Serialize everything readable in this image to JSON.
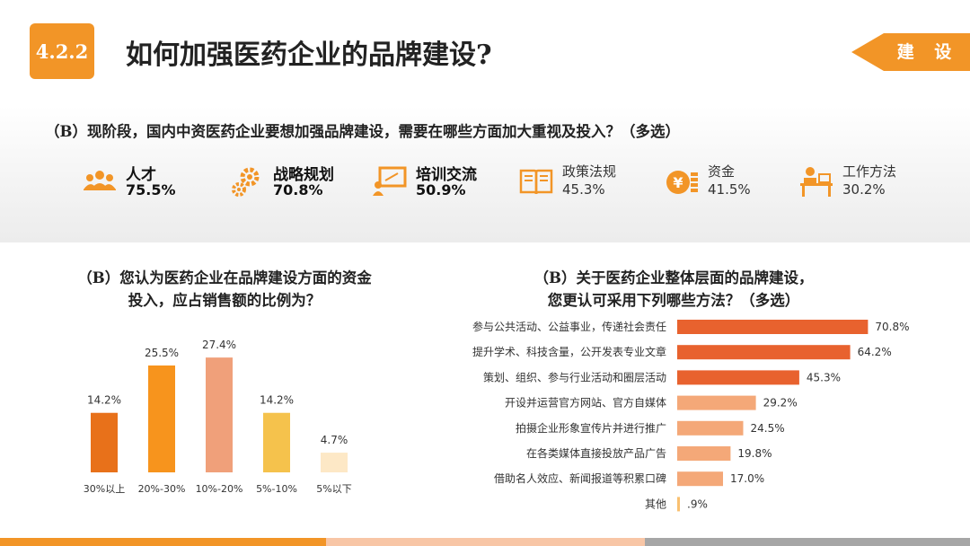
{
  "header": {
    "section_number": "4.2.2",
    "title": "如何加强医药企业的品牌建设?",
    "tag": "建 设"
  },
  "colors": {
    "accent": "#f29527",
    "dark_orange": "#e8711a",
    "bar_red": "#e8622e",
    "bar_light": "#f4a878"
  },
  "question1": {
    "text": "（B）现阶段，国内中资医药企业要想加强品牌建设，需要在哪些方面加大重视及投入？（多选）",
    "items": [
      {
        "label": "人才",
        "percent": "75.5%",
        "icon": "people-icon"
      },
      {
        "label": "战略规划",
        "percent": "70.8%",
        "icon": "gears-icon"
      },
      {
        "label": "培训交流",
        "percent": "50.9%",
        "icon": "presentation-icon"
      },
      {
        "label": "政策法规",
        "percent": "45.3%",
        "icon": "book-icon"
      },
      {
        "label": "资金",
        "percent": "41.5%",
        "icon": "money-icon"
      },
      {
        "label": "工作方法",
        "percent": "30.2%",
        "icon": "desk-worker-icon"
      }
    ]
  },
  "chart_data": [
    {
      "type": "bar",
      "title_lines": [
        "（B）您认为医药企业在品牌建设方面的资金",
        "投入，应占销售额的比例为？"
      ],
      "categories": [
        "30%以上",
        "20%-30%",
        "10%-20%",
        "5%-10%",
        "5%以下"
      ],
      "values": [
        14.2,
        25.5,
        27.4,
        14.2,
        4.7
      ],
      "value_labels": [
        "14.2%",
        "25.5%",
        "27.4%",
        "14.2%",
        "4.7%"
      ],
      "colors": [
        "#e8711a",
        "#f7941d",
        "#f0a07a",
        "#f5c24c",
        "#fde8c6"
      ],
      "ylim": [
        0,
        30
      ],
      "grid": false
    },
    {
      "type": "bar",
      "orientation": "horizontal",
      "title_lines": [
        "（B）关于医药企业整体层面的品牌建设，",
        "您更认可采用下列哪些方法？（多选）"
      ],
      "categories": [
        "参与公共活动、公益事业，传递社会责任",
        "提升学术、科技含量，公开发表专业文章",
        "策划、组织、参与行业活动和圈层活动",
        "开设并运营官方网站、官方自媒体",
        "拍摄企业形象宣传片并进行推广",
        "在各类媒体直接投放产品广告",
        "借助名人效应、新闻报道等积累口碑",
        "其他"
      ],
      "values": [
        70.8,
        64.2,
        45.3,
        29.2,
        24.5,
        19.8,
        17.0,
        0.9
      ],
      "value_labels": [
        "70.8%",
        "64.2%",
        "45.3%",
        "29.2%",
        "24.5%",
        "19.8%",
        "17.0%",
        ".9%"
      ],
      "colors": [
        "#e8622e",
        "#e8622e",
        "#e8622e",
        "#f4a878",
        "#f4a878",
        "#f4a878",
        "#f4a878",
        "#f9c070"
      ],
      "xlim": [
        0,
        80
      ],
      "grid": false
    }
  ],
  "footer": {
    "colors": [
      "#f29527",
      "#f8c6a6",
      "#a6a6a6"
    ]
  }
}
